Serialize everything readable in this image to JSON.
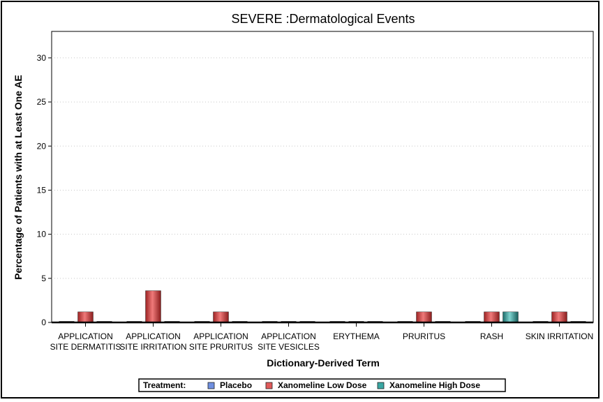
{
  "chart_data": {
    "type": "bar",
    "title": "SEVERE :Dermatological Events",
    "xlabel": "Dictionary-Derived Term",
    "ylabel": "Percentage of Patients with at Least One AE",
    "ylim": [
      0,
      33
    ],
    "yticks": [
      0,
      5,
      10,
      15,
      20,
      25,
      30
    ],
    "grid": true,
    "legend_position": "bottom",
    "categories": [
      [
        "APPLICATION",
        "SITE DERMATITIS"
      ],
      [
        "APPLICATION",
        "SITE IRRITATION"
      ],
      [
        "APPLICATION",
        "SITE PRURITUS"
      ],
      [
        "APPLICATION",
        "SITE VESICLES"
      ],
      [
        "ERYTHEMA"
      ],
      [
        "PRURITUS"
      ],
      [
        "RASH"
      ],
      [
        "SKIN IRRITATION"
      ]
    ],
    "series": [
      {
        "name": "Placebo",
        "color": "#6f8fe0",
        "values": [
          0,
          0,
          0,
          0,
          0,
          0,
          0,
          0
        ]
      },
      {
        "name": "Xanomeline Low Dose",
        "color": "#e05a5a",
        "values": [
          1.2,
          3.6,
          1.2,
          0,
          0,
          1.2,
          1.2,
          1.2
        ]
      },
      {
        "name": "Xanomeline High Dose",
        "color": "#3aa7a3",
        "values": [
          0,
          0,
          0,
          0,
          0,
          0,
          1.2,
          0
        ]
      }
    ]
  },
  "legend": {
    "title": "Treatment:"
  }
}
